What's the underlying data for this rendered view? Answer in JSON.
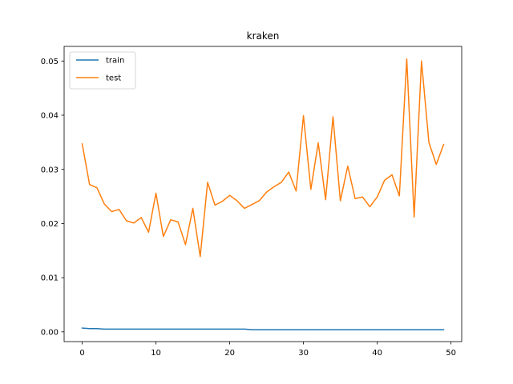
{
  "chart_data": {
    "type": "line",
    "title": "kraken",
    "xlabel": "",
    "ylabel": "",
    "xlim": [
      -2.45,
      51.45
    ],
    "ylim": [
      -0.0018,
      0.0527
    ],
    "xticks": [
      0,
      10,
      20,
      30,
      40,
      50
    ],
    "xtick_labels": [
      "0",
      "10",
      "20",
      "30",
      "40",
      "50"
    ],
    "yticks": [
      0.0,
      0.01,
      0.02,
      0.03,
      0.04,
      0.05
    ],
    "ytick_labels": [
      "0.00",
      "0.01",
      "0.02",
      "0.03",
      "0.04",
      "0.05"
    ],
    "grid": false,
    "legend_position": "upper-left",
    "x": [
      0,
      1,
      2,
      3,
      4,
      5,
      6,
      7,
      8,
      9,
      10,
      11,
      12,
      13,
      14,
      15,
      16,
      17,
      18,
      19,
      20,
      21,
      22,
      23,
      24,
      25,
      26,
      27,
      28,
      29,
      30,
      31,
      32,
      33,
      34,
      35,
      36,
      37,
      38,
      39,
      40,
      41,
      42,
      43,
      44,
      45,
      46,
      47,
      48,
      49
    ],
    "series": [
      {
        "name": "train",
        "color": "#1f77b4",
        "values": [
          0.0007,
          0.0006,
          0.0006,
          0.0005,
          0.0005,
          0.0005,
          0.0005,
          0.0005,
          0.0005,
          0.0005,
          0.0005,
          0.0005,
          0.0005,
          0.0005,
          0.0005,
          0.0005,
          0.0005,
          0.0005,
          0.0005,
          0.0005,
          0.0005,
          0.0005,
          0.0005,
          0.0004,
          0.0004,
          0.0004,
          0.0004,
          0.0004,
          0.0004,
          0.0004,
          0.0004,
          0.0004,
          0.0004,
          0.0004,
          0.0004,
          0.0004,
          0.0004,
          0.0004,
          0.0004,
          0.0004,
          0.0004,
          0.0004,
          0.0004,
          0.0004,
          0.0004,
          0.0004,
          0.0004,
          0.0004,
          0.0004,
          0.0004
        ]
      },
      {
        "name": "test",
        "color": "#ff7f0e",
        "values": [
          0.0347,
          0.0272,
          0.0266,
          0.0236,
          0.0222,
          0.0226,
          0.0205,
          0.0201,
          0.0211,
          0.0184,
          0.0256,
          0.0176,
          0.0207,
          0.0203,
          0.0161,
          0.0228,
          0.0139,
          0.0276,
          0.0234,
          0.0241,
          0.0252,
          0.0242,
          0.0228,
          0.0235,
          0.0242,
          0.0258,
          0.0268,
          0.0276,
          0.0295,
          0.026,
          0.0399,
          0.0263,
          0.0349,
          0.0244,
          0.0397,
          0.0242,
          0.0306,
          0.0246,
          0.0249,
          0.0231,
          0.0249,
          0.028,
          0.029,
          0.0251,
          0.0504,
          0.0212,
          0.05,
          0.035,
          0.0309,
          0.0346
        ]
      }
    ]
  }
}
